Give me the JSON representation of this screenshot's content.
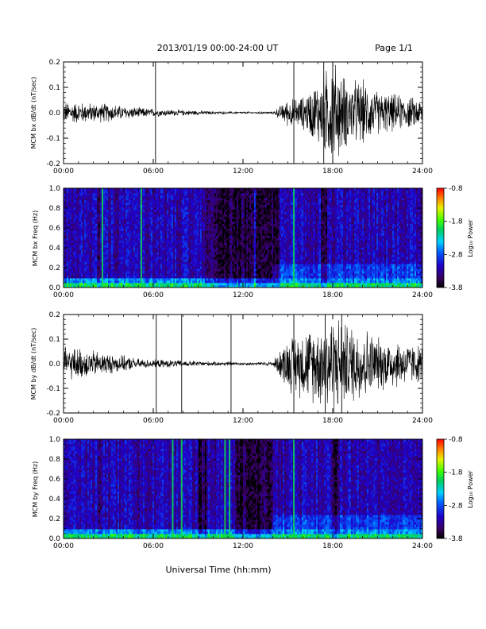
{
  "header": {
    "title": "2013/01/19  00:00-24:00 UT",
    "page": "Page 1/1"
  },
  "xaxis": {
    "label": "Universal Time (hh:mm)",
    "ticks": [
      "00:00",
      "06:00",
      "12:00",
      "18:00",
      "24:00"
    ]
  },
  "colorbar": {
    "label": "Log₁₀ Power",
    "ticks": [
      "-0.8",
      "-1.8",
      "-2.8",
      "-3.8"
    ]
  },
  "chart_data": [
    {
      "type": "line",
      "title": "",
      "xlabel": "",
      "ylabel": "MCM bx dB/dt (nT/sec)",
      "xlim": [
        0,
        24
      ],
      "ylim": [
        -0.2,
        0.2
      ],
      "yticks": [
        "-0.2",
        "-0.1",
        "0.0",
        "0.1",
        "0.2"
      ],
      "grid": false,
      "activity_envelope": {
        "hours": [
          0,
          1,
          2,
          3,
          4,
          5,
          6,
          7,
          8,
          9,
          10,
          11,
          12,
          13,
          14,
          15,
          16,
          17,
          18,
          19,
          20,
          21,
          22,
          23,
          24
        ],
        "amplitude": [
          0.04,
          0.04,
          0.035,
          0.035,
          0.025,
          0.02,
          0.015,
          0.012,
          0.01,
          0.008,
          0.005,
          0.004,
          0.004,
          0.004,
          0.004,
          0.05,
          0.06,
          0.12,
          0.2,
          0.12,
          0.12,
          0.08,
          0.07,
          0.06,
          0.05
        ]
      },
      "spikes_hours": [
        6.15,
        15.4,
        17.4,
        18.0
      ]
    },
    {
      "type": "heatmap",
      "title": "",
      "xlabel": "",
      "ylabel": "MCM bx Freq (Hz)",
      "xlim": [
        0,
        24
      ],
      "ylim": [
        0.0,
        1.0
      ],
      "yticks": [
        "0.0",
        "0.2",
        "0.4",
        "0.6",
        "0.8",
        "1.0"
      ],
      "color_range": [
        -3.8,
        -0.8
      ],
      "bright_lines_hours": [
        2.6,
        5.2,
        15.4
      ],
      "dark_bands_hours": [
        [
          2.2,
          2.4
        ],
        [
          9.5,
          12.7
        ],
        [
          12.8,
          14.4
        ],
        [
          17.2,
          17.6
        ]
      ]
    },
    {
      "type": "line",
      "title": "",
      "xlabel": "",
      "ylabel": "MCM by dB/dt (nT/sec)",
      "xlim": [
        0,
        24
      ],
      "ylim": [
        -0.2,
        0.2
      ],
      "yticks": [
        "-0.2",
        "-0.1",
        "0.0",
        "0.1",
        "0.2"
      ],
      "grid": false,
      "activity_envelope": {
        "hours": [
          0,
          1,
          2,
          3,
          4,
          5,
          6,
          7,
          8,
          9,
          10,
          11,
          12,
          13,
          14,
          15,
          16,
          17,
          18,
          19,
          20,
          21,
          22,
          23,
          24
        ],
        "amplitude": [
          0.06,
          0.06,
          0.05,
          0.04,
          0.03,
          0.02,
          0.015,
          0.015,
          0.012,
          0.01,
          0.008,
          0.008,
          0.006,
          0.006,
          0.01,
          0.1,
          0.13,
          0.15,
          0.2,
          0.15,
          0.15,
          0.1,
          0.1,
          0.08,
          0.07
        ]
      },
      "spikes_hours": [
        6.2,
        7.9,
        11.2,
        15.4,
        17.5,
        18.6
      ]
    },
    {
      "type": "heatmap",
      "title": "",
      "xlabel": "",
      "ylabel": "MCM by Freq (Hz)",
      "xlim": [
        0,
        24
      ],
      "ylim": [
        0.0,
        1.0
      ],
      "yticks": [
        "0.0",
        "0.2",
        "0.4",
        "0.6",
        "0.8",
        "1.0"
      ],
      "color_range": [
        -3.8,
        -0.8
      ],
      "bright_lines_hours": [
        7.3,
        7.9,
        10.8,
        11.1,
        15.4
      ],
      "dark_bands_hours": [
        [
          2.3,
          2.5
        ],
        [
          9.0,
          9.6
        ],
        [
          11.5,
          14.0
        ],
        [
          18.0,
          18.4
        ]
      ]
    }
  ]
}
